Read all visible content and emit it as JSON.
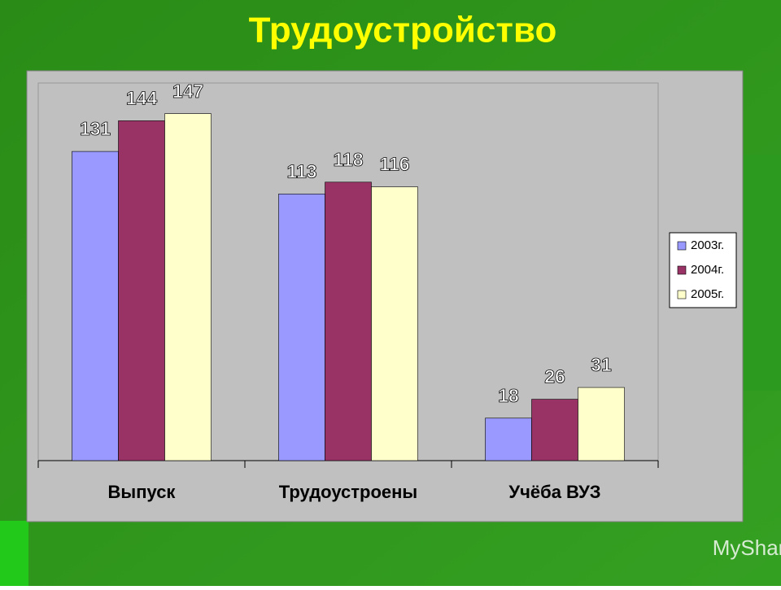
{
  "chart_data": {
    "type": "bar",
    "title": "Трудоустройство",
    "categories": [
      "Выпуск",
      "Трудоустроены",
      "Учёба ВУЗ"
    ],
    "series": [
      {
        "name": "2003г.",
        "color": "#9999ff",
        "values": [
          131,
          113,
          18
        ]
      },
      {
        "name": "2004г.",
        "color": "#993366",
        "values": [
          144,
          118,
          26
        ]
      },
      {
        "name": "2005г.",
        "color": "#ffffcc",
        "values": [
          147,
          116,
          31
        ]
      }
    ],
    "ylim": [
      0,
      160
    ],
    "grid": false,
    "legend": "right"
  },
  "watermark": "MyShared"
}
